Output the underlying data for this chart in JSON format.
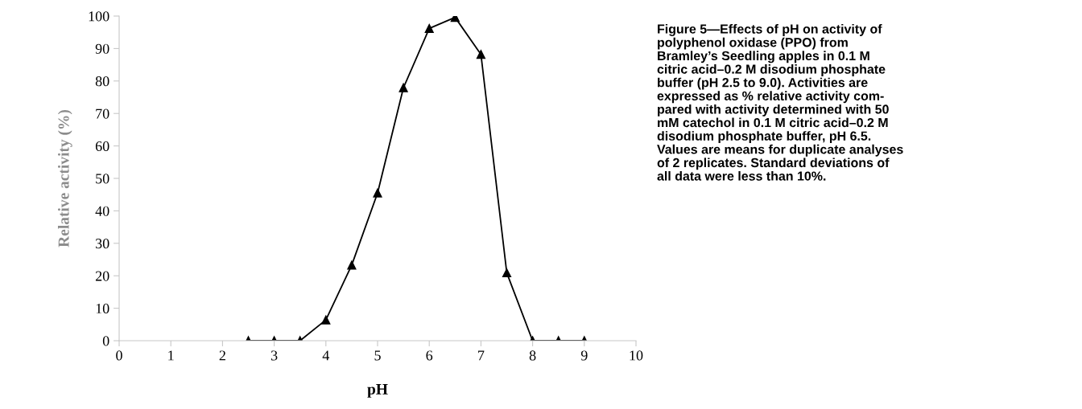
{
  "chart_data": {
    "type": "line",
    "xlabel": "pH",
    "ylabel": "Relative activity (%)",
    "x": [
      2.5,
      3,
      3.5,
      4,
      4.5,
      5,
      5.5,
      6,
      6.5,
      7,
      7.5,
      8,
      8.5,
      9
    ],
    "series": [
      {
        "color": "#000000",
        "values": [
          0,
          0,
          0,
          6.4,
          23.3,
          45.5,
          77.9,
          96.2,
          99.6,
          88.2,
          20.9,
          0,
          0,
          0
        ]
      }
    ],
    "xlim": [
      0,
      10
    ],
    "xticks": [
      0,
      1,
      2,
      3,
      4,
      5,
      6,
      7,
      8,
      9,
      10
    ],
    "ylim": [
      0,
      100
    ],
    "yticks": [
      0,
      10,
      20,
      30,
      40,
      50,
      60,
      70,
      80,
      90,
      100
    ],
    "marker": "triangle",
    "grid": false,
    "legend": false,
    "annotations": [
      "Figure 5—Effects of pH on activity of\npolyphenol oxidase (PPO) from\nBramley’s Seedling apples in 0.1 M\ncitric acid–0.2 M disodium phosphate\nbuffer (pH 2.5 to 9.0). Activities are\nexpressed as % relative activity com-\npared with activity determined with 50\nmM catechol in 0.1 M citric acid–0.2 M\ndisodium phosphate buffer, pH 6.5.\nValues are means for duplicate analyses\nof 2 replicates. Standard deviations of\nall data were less than 10%."
    ]
  }
}
